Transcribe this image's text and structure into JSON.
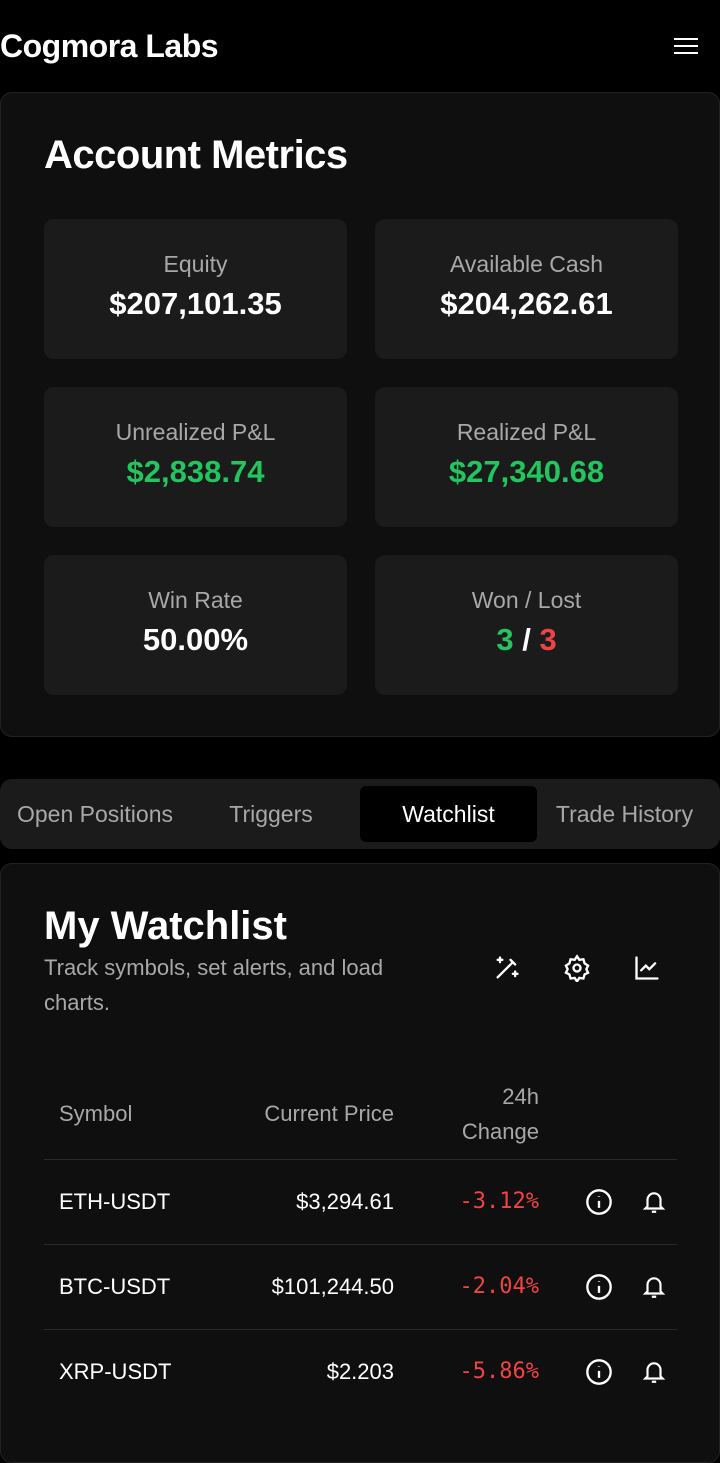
{
  "header": {
    "brand": "Cogmora Labs",
    "menu_icon": "hamburger-icon"
  },
  "metrics": {
    "title": "Account Metrics",
    "tiles": [
      {
        "label": "Equity",
        "value": "$207,101.35"
      },
      {
        "label": "Available Cash",
        "value": "$204,262.61"
      },
      {
        "label": "Unrealized P&L",
        "value": "$2,838.74"
      },
      {
        "label": "Realized P&L",
        "value": "$27,340.68"
      },
      {
        "label": "Win Rate",
        "value": "50.00%"
      },
      {
        "label": "Won / Lost",
        "won": "3",
        "sep": "/",
        "lost": "3"
      }
    ]
  },
  "tabs": [
    {
      "label": "Open Positions"
    },
    {
      "label": "Triggers"
    },
    {
      "label": "Watchlist",
      "active": true
    },
    {
      "label": "Trade History"
    }
  ],
  "watchlist": {
    "title": "My Watchlist",
    "subtitle": "Track symbols, set alerts, and load charts.",
    "columns": [
      "Symbol",
      "Current Price",
      "24h Change"
    ],
    "rows": [
      {
        "symbol": "ETH-USDT",
        "price": "$3,294.61",
        "change": "-3.12%"
      },
      {
        "symbol": "BTC-USDT",
        "price": "$101,244.50",
        "change": "-2.04%"
      },
      {
        "symbol": "XRP-USDT",
        "price": "$2.203",
        "change": "-5.86%"
      }
    ]
  },
  "colors": {
    "positive": "#22c55e",
    "negative": "#ef4444"
  }
}
